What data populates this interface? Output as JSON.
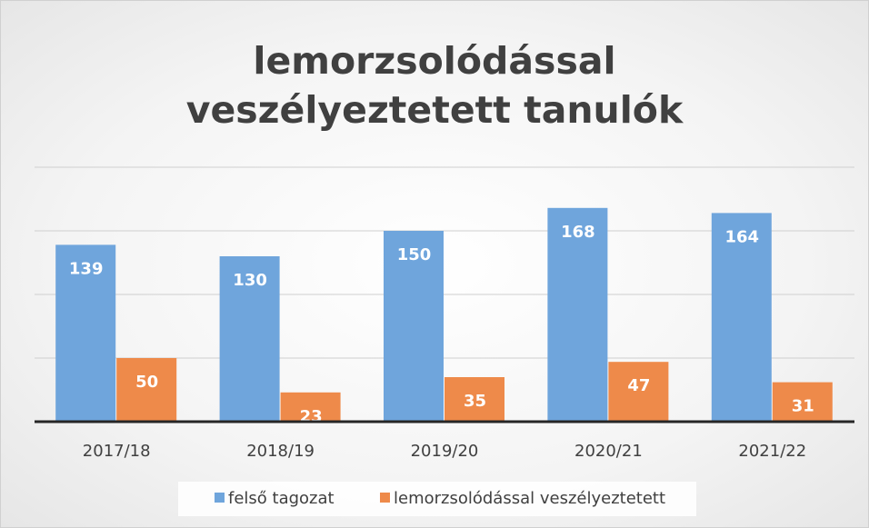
{
  "chart_data": {
    "type": "bar",
    "title": "lemorzsolódással veszélyeztetett tanulók",
    "categories": [
      "2017/18",
      "2018/19",
      "2019/20",
      "2020/21",
      "2021/22"
    ],
    "series": [
      {
        "name": "felső tagozat",
        "color": "#6fa5dc",
        "values": [
          139,
          130,
          150,
          168,
          164
        ]
      },
      {
        "name": "lemorzsolódással veszélyeztetett",
        "color": "#ee8a4a",
        "values": [
          50,
          23,
          35,
          47,
          31
        ]
      }
    ],
    "ylim": [
      0,
      200
    ],
    "yticks": [
      0,
      50,
      100,
      150,
      200
    ],
    "grid": true,
    "legend": "bottom"
  }
}
